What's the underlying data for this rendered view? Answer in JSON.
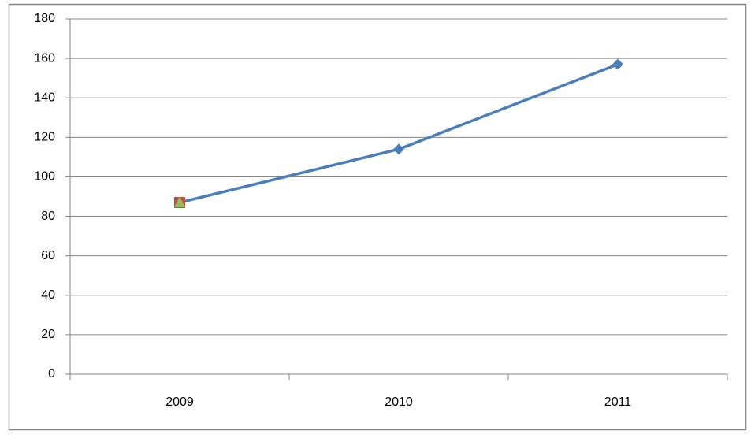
{
  "chart_data": {
    "type": "line",
    "categories": [
      "2009",
      "2010",
      "2011"
    ],
    "series": [
      {
        "color": "#4a7ebb",
        "marker": "diamond",
        "values": [
          87,
          114,
          157
        ]
      },
      {
        "color": "#be4b48",
        "marker": "square",
        "values": [
          87,
          null,
          null
        ]
      },
      {
        "color": "#9bbb59",
        "marker": "triangle",
        "values": [
          87,
          null,
          null
        ]
      }
    ],
    "ylim": [
      0,
      180
    ],
    "yticks": [
      0,
      20,
      40,
      60,
      80,
      100,
      120,
      140,
      160,
      180
    ],
    "grid": true
  }
}
